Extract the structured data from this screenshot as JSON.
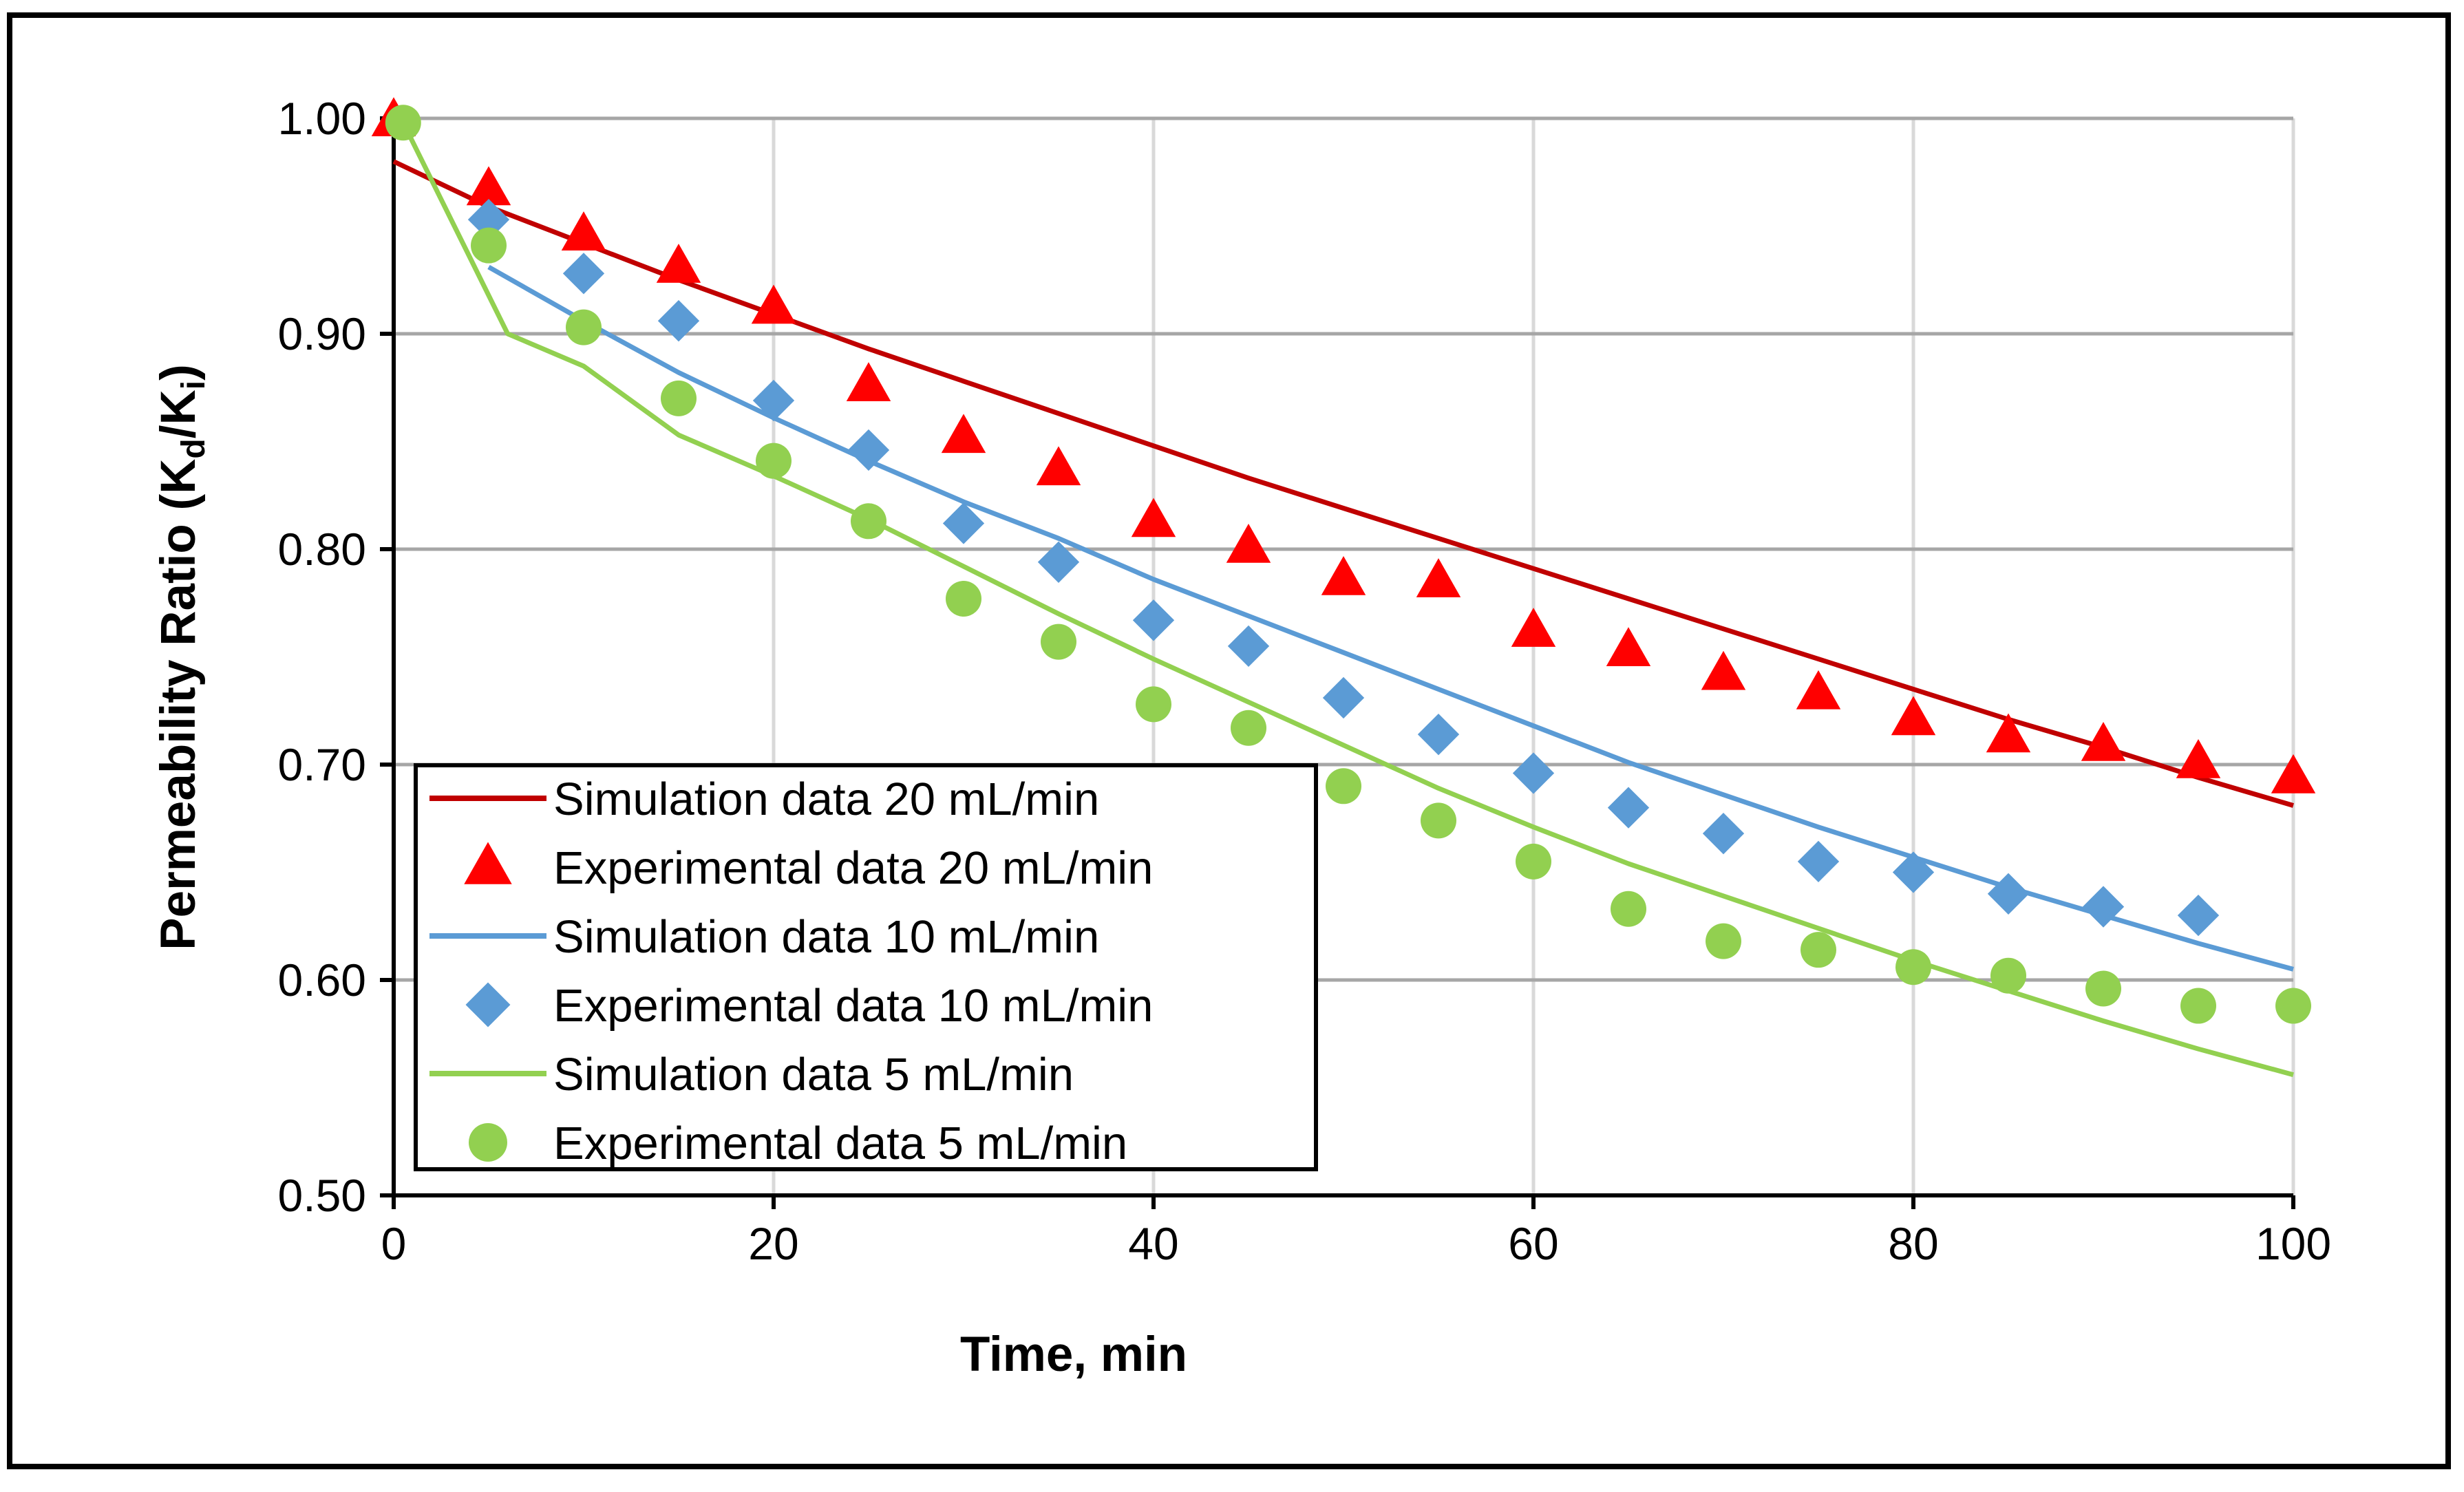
{
  "chart_data": {
    "type": "scatter",
    "title": "",
    "xlabel": "Time, min",
    "ylabel": "Permeability Ratio (Kd/Ki)",
    "ylabel_parts": {
      "lead": "Permeability Ratio (K",
      "sub1": "d",
      "mid": "/K",
      "sub2": "i",
      "tail": ")"
    },
    "xlim": [
      0,
      100
    ],
    "ylim": [
      0.5,
      1.0
    ],
    "xticks": [
      0,
      20,
      40,
      60,
      80,
      100
    ],
    "xtick_labels": [
      "0",
      "20",
      "40",
      "60",
      "80",
      "100"
    ],
    "yticks": [
      0.5,
      0.6,
      0.7,
      0.8,
      0.9,
      1.0
    ],
    "ytick_labels": [
      "0.50",
      "0.60",
      "0.70",
      "0.80",
      "0.90",
      "1.00"
    ],
    "grid": true,
    "legend_position": "bottom-left",
    "series": [
      {
        "name": "Simulation data 20 mL/min",
        "kind": "line",
        "color": "#c00000",
        "x": [
          0,
          5,
          10,
          15,
          20,
          25,
          30,
          35,
          40,
          45,
          50,
          55,
          60,
          65,
          70,
          75,
          80,
          85,
          90,
          95,
          100
        ],
        "y": [
          0.98,
          0.959,
          0.942,
          0.925,
          0.909,
          0.893,
          0.878,
          0.863,
          0.848,
          0.833,
          0.819,
          0.805,
          0.791,
          0.777,
          0.763,
          0.749,
          0.735,
          0.721,
          0.708,
          0.694,
          0.681
        ]
      },
      {
        "name": "Experimental data 20 mL/min",
        "kind": "triangle",
        "color": "#ff0000",
        "x": [
          0,
          5,
          10,
          15,
          20,
          25,
          30,
          35,
          40,
          45,
          50,
          55,
          60,
          65,
          70,
          75,
          80,
          85,
          90,
          95,
          100
        ],
        "y": [
          0.999,
          0.967,
          0.946,
          0.931,
          0.912,
          0.876,
          0.852,
          0.837,
          0.813,
          0.801,
          0.786,
          0.785,
          0.762,
          0.753,
          0.742,
          0.733,
          0.721,
          0.713,
          0.709,
          0.701,
          0.694
        ]
      },
      {
        "name": "Simulation data 10 mL/min",
        "kind": "line",
        "color": "#5b9bd5",
        "x": [
          5,
          10,
          15,
          20,
          25,
          30,
          35,
          40,
          45,
          50,
          55,
          60,
          65,
          70,
          75,
          80,
          85,
          90,
          95,
          100
        ],
        "y": [
          0.931,
          0.906,
          0.882,
          0.861,
          0.841,
          0.822,
          0.805,
          0.786,
          0.769,
          0.752,
          0.735,
          0.718,
          0.701,
          0.686,
          0.671,
          0.657,
          0.643,
          0.63,
          0.617,
          0.605
        ]
      },
      {
        "name": "Experimental data 10 mL/min",
        "kind": "diamond",
        "color": "#5b9bd5",
        "x": [
          5,
          10,
          15,
          20,
          25,
          30,
          35,
          40,
          45,
          50,
          55,
          60,
          65,
          70,
          75,
          80,
          85,
          90,
          95
        ],
        "y": [
          0.953,
          0.928,
          0.906,
          0.869,
          0.846,
          0.812,
          0.794,
          0.767,
          0.755,
          0.731,
          0.714,
          0.696,
          0.68,
          0.668,
          0.655,
          0.65,
          0.64,
          0.634,
          0.63
        ]
      },
      {
        "name": "Simulation data 5 mL/min",
        "kind": "line",
        "color": "#92d050",
        "x": [
          0.5,
          6,
          10,
          15,
          20,
          25,
          30,
          35,
          40,
          45,
          50,
          55,
          60,
          65,
          70,
          75,
          80,
          85,
          90,
          95,
          100
        ],
        "y": [
          0.998,
          0.9,
          0.885,
          0.853,
          0.834,
          0.814,
          0.792,
          0.77,
          0.749,
          0.729,
          0.709,
          0.689,
          0.671,
          0.654,
          0.639,
          0.624,
          0.609,
          0.595,
          0.581,
          0.568,
          0.556
        ]
      },
      {
        "name": "Experimental data 5 mL/min",
        "kind": "circle",
        "color": "#92d050",
        "x": [
          0.5,
          5,
          10,
          15,
          20,
          25,
          30,
          35,
          40,
          45,
          50,
          55,
          60,
          65,
          70,
          75,
          80,
          85,
          90,
          95,
          100
        ],
        "y": [
          0.998,
          0.941,
          0.903,
          0.87,
          0.841,
          0.813,
          0.777,
          0.757,
          0.728,
          0.717,
          0.69,
          0.674,
          0.655,
          0.633,
          0.618,
          0.614,
          0.606,
          0.602,
          0.596,
          0.588,
          0.588
        ]
      }
    ]
  }
}
